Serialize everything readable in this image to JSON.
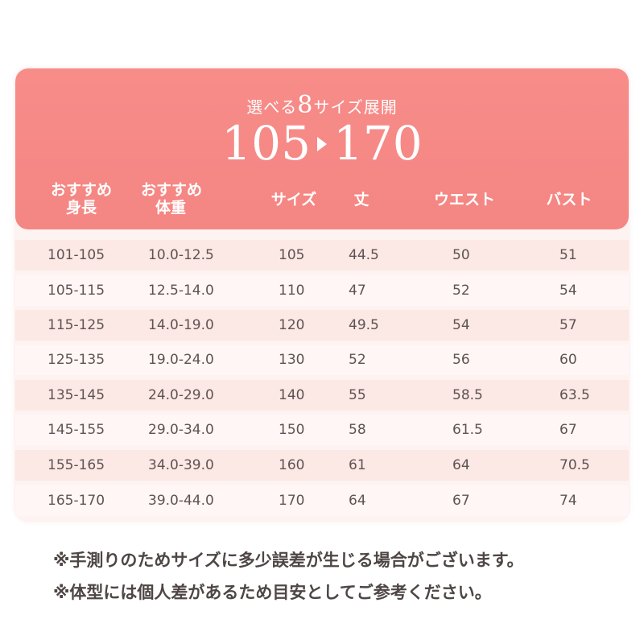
{
  "header": {
    "subtitle_pre": "選べる",
    "subtitle_num": "8",
    "subtitle_post": "サイズ展開",
    "range_start": "105",
    "range_end": "170"
  },
  "columns": {
    "height_line1": "おすすめ",
    "height_line2": "身長",
    "weight_line1": "おすすめ",
    "weight_line2": "体重",
    "size": "サイズ",
    "length": "丈",
    "waist": "ウエスト",
    "bust": "バスト"
  },
  "rows": [
    {
      "height": "101-105",
      "weight": "10.0-12.5",
      "size": "105",
      "length": "44.5",
      "waist": "50",
      "bust": "51"
    },
    {
      "height": "105-115",
      "weight": "12.5-14.0",
      "size": "110",
      "length": "47",
      "waist": "52",
      "bust": "54"
    },
    {
      "height": "115-125",
      "weight": "14.0-19.0",
      "size": "120",
      "length": "49.5",
      "waist": "54",
      "bust": "57"
    },
    {
      "height": "125-135",
      "weight": "19.0-24.0",
      "size": "130",
      "length": "52",
      "waist": "56",
      "bust": "60"
    },
    {
      "height": "135-145",
      "weight": "24.0-29.0",
      "size": "140",
      "length": "55",
      "waist": "58.5",
      "bust": "63.5"
    },
    {
      "height": "145-155",
      "weight": "29.0-34.0",
      "size": "150",
      "length": "58",
      "waist": "61.5",
      "bust": "67"
    },
    {
      "height": "155-165",
      "weight": "34.0-39.0",
      "size": "160",
      "length": "61",
      "waist": "64",
      "bust": "70.5"
    },
    {
      "height": "165-170",
      "weight": "39.0-44.0",
      "size": "170",
      "length": "64",
      "waist": "67",
      "bust": "74"
    }
  ],
  "notes": {
    "line1": "※手測りのためサイズに多少誤差が生じる場合がございます。",
    "line2": "※体型には個人差があるため目安としてご参考ください。"
  },
  "colors": {
    "header_bg": "#f78c89",
    "row_odd": "#fce8e5",
    "row_even": "#fff6f5",
    "text": "#5d5452"
  }
}
